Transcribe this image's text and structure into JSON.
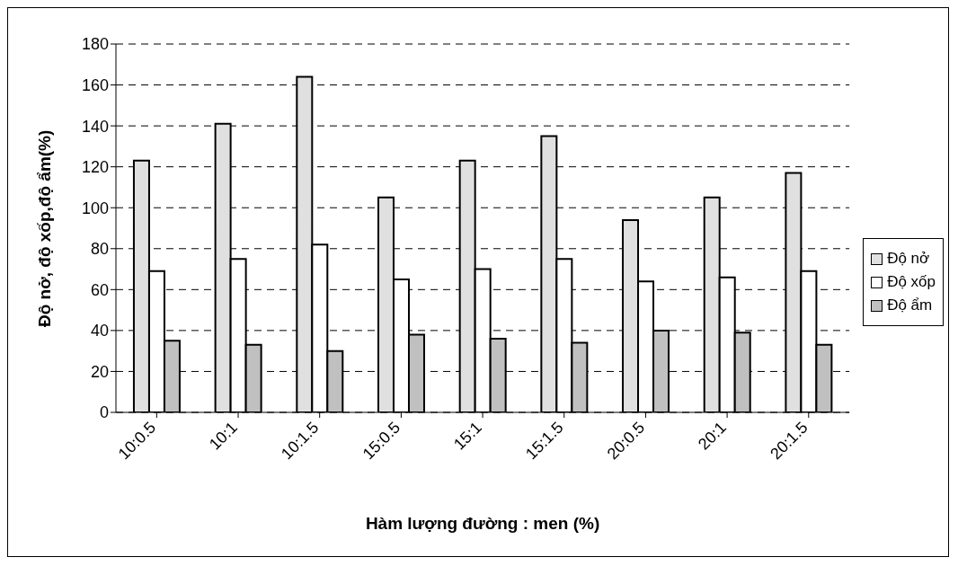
{
  "chart_data": {
    "type": "bar",
    "xlabel": "Hàm lượng đường : men (%)",
    "ylabel": "Độ nở, độ xốp,độ ẩm(%)",
    "categories": [
      "10:0.5",
      "10:1",
      "10:1.5",
      "15:0.5",
      "15:1",
      "15:1.5",
      "20:0.5",
      "20:1",
      "20:1.5"
    ],
    "series": [
      {
        "name": "Độ nở",
        "color": "#e0e0e0",
        "values": [
          123,
          141,
          164,
          105,
          123,
          135,
          94,
          105,
          117
        ]
      },
      {
        "name": "Độ xốp",
        "color": "#ffffff",
        "values": [
          69,
          75,
          82,
          65,
          70,
          75,
          64,
          66,
          69
        ]
      },
      {
        "name": "Độ ẩm",
        "color": "#c0c0c0",
        "values": [
          35,
          33,
          30,
          38,
          36,
          34,
          40,
          39,
          33
        ]
      }
    ],
    "ylim": [
      0,
      180
    ],
    "yticks": [
      0,
      20,
      40,
      60,
      80,
      100,
      120,
      140,
      160,
      180
    ],
    "grid": "y",
    "legend": "right"
  }
}
